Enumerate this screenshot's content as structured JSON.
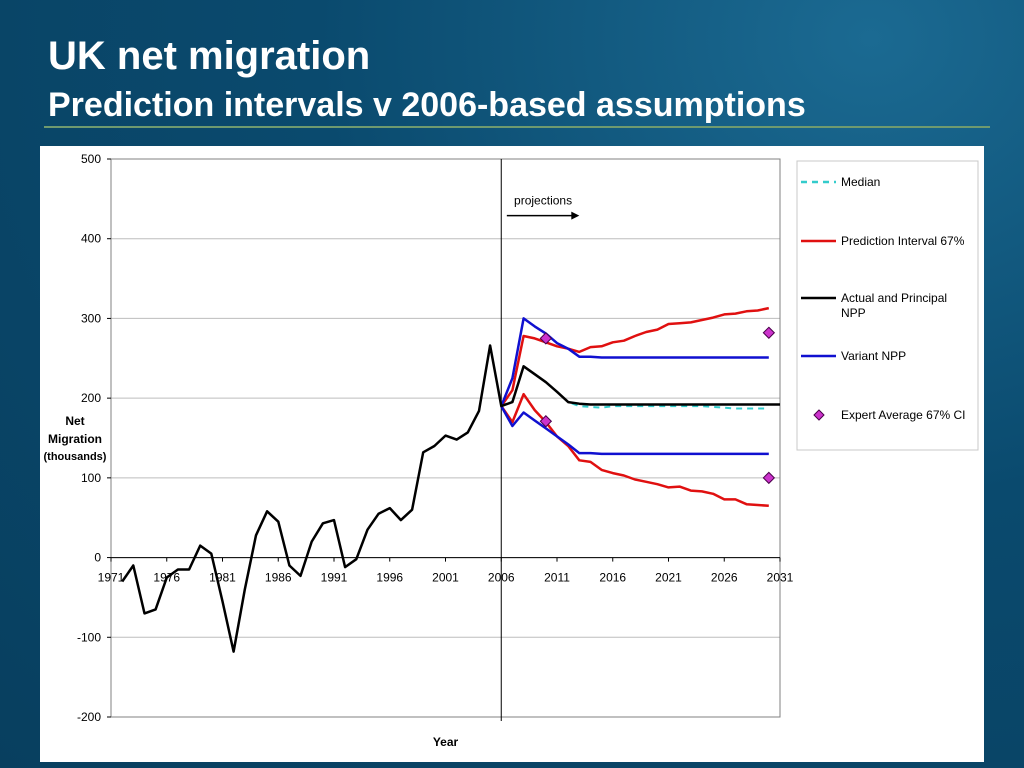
{
  "slide": {
    "title": "UK net migration",
    "subtitle": "Prediction intervals v 2006-based assumptions"
  },
  "colors": {
    "background": "#0a4a6e",
    "median": "#33cccc",
    "prediction_interval": "#e01010",
    "principal": "#000000",
    "variant": "#1010d0",
    "expert": "#cc33cc"
  },
  "chart_data": {
    "type": "line",
    "title": "",
    "xlabel": "Year",
    "ylabel_lines": [
      "Net",
      "Migration",
      "(thousands)"
    ],
    "xlim": [
      1971,
      2031
    ],
    "ylim": [
      -200,
      500
    ],
    "x_ticks": [
      "1971",
      "1976",
      "1981",
      "1986",
      "1991",
      "1996",
      "2001",
      "2006",
      "2011",
      "2016",
      "2021",
      "2026",
      "2031"
    ],
    "y_ticks": [
      "500",
      "400",
      "300",
      "200",
      "100",
      "0",
      "-100",
      "-200"
    ],
    "grid": true,
    "legend_position": "right",
    "annotation": {
      "text": "projections",
      "x_start": 2006.5,
      "x_end": 2013,
      "y": 429
    },
    "divider_x": 2006,
    "series": [
      {
        "name": "Actual and Principal NPP",
        "x": [
          1972,
          1973,
          1974,
          1975,
          1976,
          1977,
          1978,
          1979,
          1980,
          1981,
          1982,
          1983,
          1984,
          1985,
          1986,
          1987,
          1988,
          1989,
          1990,
          1991,
          1992,
          1993,
          1994,
          1995,
          1996,
          1997,
          1998,
          1999,
          2000,
          2001,
          2002,
          2003,
          2004,
          2005,
          2006,
          2007,
          2008,
          2009,
          2010,
          2011,
          2012,
          2013,
          2014,
          2015,
          2016,
          2017,
          2018,
          2019,
          2020,
          2021,
          2022,
          2023,
          2024,
          2025,
          2026,
          2027,
          2028,
          2029,
          2030,
          2031
        ],
        "y": [
          -30,
          -10,
          -70,
          -65,
          -25,
          -15,
          -15,
          15,
          5,
          -55,
          -118,
          -40,
          28,
          58,
          45,
          -10,
          -23,
          20,
          43,
          47,
          -12,
          -2,
          35,
          55,
          62,
          47,
          60,
          132,
          140,
          153,
          148,
          157,
          184,
          266,
          190,
          195,
          240,
          230,
          220,
          208,
          195,
          193,
          192,
          192,
          192,
          192,
          192,
          192,
          192,
          192,
          192,
          192,
          192,
          192,
          192,
          192,
          192,
          192,
          192,
          192
        ]
      },
      {
        "name": "Prediction Interval 67%",
        "x": [
          2006,
          2007,
          2008,
          2009,
          2010,
          2011,
          2012,
          2013,
          2014,
          2015,
          2016,
          2017,
          2018,
          2019,
          2020,
          2021,
          2022,
          2023,
          2024,
          2025,
          2026,
          2027,
          2028,
          2029,
          2030
        ],
        "y": [
          190,
          210,
          278,
          275,
          270,
          265,
          262,
          258,
          264,
          265,
          270,
          272,
          278,
          283,
          286,
          293,
          294,
          295,
          298,
          301,
          305,
          306,
          309,
          310,
          313
        ]
      },
      {
        "name": "Prediction Interval 67% (lower)",
        "x": [
          2006,
          2007,
          2008,
          2009,
          2010,
          2011,
          2012,
          2013,
          2014,
          2015,
          2016,
          2017,
          2018,
          2019,
          2020,
          2021,
          2022,
          2023,
          2024,
          2025,
          2026,
          2027,
          2028,
          2029,
          2030
        ],
        "y": [
          190,
          170,
          205,
          185,
          170,
          152,
          140,
          122,
          120,
          110,
          106,
          103,
          98,
          95,
          92,
          88,
          89,
          84,
          83,
          80,
          73,
          73,
          67,
          66,
          65
        ]
      },
      {
        "name": "Median",
        "x": [
          2006,
          2007,
          2008,
          2009,
          2010,
          2011,
          2012,
          2013,
          2014,
          2015,
          2016,
          2017,
          2018,
          2019,
          2020,
          2021,
          2022,
          2023,
          2024,
          2025,
          2026,
          2027,
          2028,
          2029,
          2030
        ],
        "y": [
          190,
          196,
          240,
          230,
          220,
          208,
          195,
          190,
          189,
          188,
          190,
          190,
          190,
          190,
          190,
          190,
          190,
          190,
          190,
          189,
          188,
          187,
          187,
          187,
          187
        ]
      },
      {
        "name": "Variant NPP",
        "x": [
          2006,
          2007,
          2008,
          2009,
          2010,
          2011,
          2012,
          2013,
          2014,
          2015,
          2016,
          2017,
          2018,
          2019,
          2020,
          2021,
          2022,
          2023,
          2024,
          2025,
          2026,
          2027,
          2028,
          2029,
          2030
        ],
        "y": [
          190,
          225,
          300,
          290,
          281,
          269,
          262,
          252,
          252,
          251,
          251,
          251,
          251,
          251,
          251,
          251,
          251,
          251,
          251,
          251,
          251,
          251,
          251,
          251,
          251
        ]
      },
      {
        "name": "Variant NPP (lower)",
        "x": [
          2006,
          2007,
          2008,
          2009,
          2010,
          2011,
          2012,
          2013,
          2014,
          2015,
          2016,
          2017,
          2018,
          2019,
          2020,
          2021,
          2022,
          2023,
          2024,
          2025,
          2026,
          2027,
          2028,
          2029,
          2030
        ],
        "y": [
          190,
          165,
          182,
          172,
          162,
          152,
          142,
          131,
          131,
          130,
          130,
          130,
          130,
          130,
          130,
          130,
          130,
          130,
          130,
          130,
          130,
          130,
          130,
          130,
          130
        ]
      },
      {
        "name": "Expert Average 67% CI",
        "x": [
          2010,
          2010,
          2030,
          2030
        ],
        "y": [
          275,
          171,
          282,
          100
        ]
      }
    ],
    "legend": [
      {
        "label": "Median",
        "style": "dashed",
        "color": "#33cccc"
      },
      {
        "label": "Prediction Interval 67%",
        "style": "line",
        "color": "#e01010"
      },
      {
        "label": "Actual and Principal NPP",
        "style": "line",
        "color": "#000000"
      },
      {
        "label": "Variant NPP",
        "style": "line",
        "color": "#1010d0"
      },
      {
        "label": "Expert Average 67% CI",
        "style": "diamond",
        "color": "#cc33cc"
      }
    ]
  }
}
